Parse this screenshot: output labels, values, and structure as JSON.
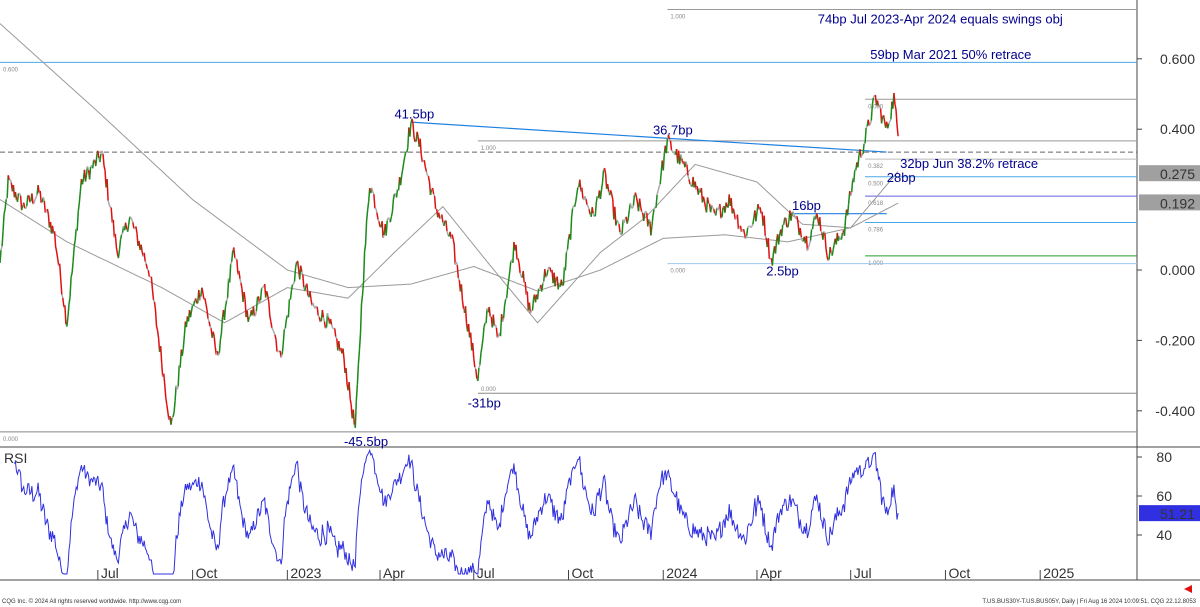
{
  "chart_data": {
    "type": "line",
    "symbol_caption": "T.US.BUS30Y-T.US.BUS05Y, Daily | Fri Aug 16 2024 10:09:51, CQG 22.12.8053",
    "copyright": "CQG Inc. © 2024 All rights reserved worldwide. http://www.cqg.com",
    "price_axis": {
      "ticks": [
        "0.600",
        "0.400",
        "0.000",
        "-0.200",
        "-0.400"
      ],
      "tick_values": [
        0.6,
        0.4,
        0.0,
        -0.2,
        -0.4
      ],
      "ylim": [
        -0.48,
        0.77
      ]
    },
    "price_markers": [
      {
        "label": "0.275",
        "value": 0.275,
        "color": "#a0a0a0"
      },
      {
        "label": "0.192",
        "value": 0.192,
        "color": "#a0a0a0"
      }
    ],
    "x_ticks": [
      {
        "label": "Jul",
        "date": "2022-07-01"
      },
      {
        "label": "Oct",
        "date": "2022-10-01"
      },
      {
        "label": "2023",
        "date": "2023-01-01"
      },
      {
        "label": "Apr",
        "date": "2023-04-01"
      },
      {
        "label": "Jul",
        "date": "2023-07-01"
      },
      {
        "label": "Oct",
        "date": "2023-10-01"
      },
      {
        "label": "2024",
        "date": "2024-01-01"
      },
      {
        "label": "Apr",
        "date": "2024-04-01"
      },
      {
        "label": "Jul",
        "date": "2024-07-01"
      },
      {
        "label": "Oct",
        "date": "2024-10-01"
      },
      {
        "label": "2025",
        "date": "2025-01-01"
      }
    ],
    "x_range": [
      "2022-03-28",
      "2025-04-05"
    ],
    "series": [
      {
        "key": "price",
        "points": [
          [
            "2022-03-28",
            0.02
          ],
          [
            "2022-04-05",
            0.25
          ],
          [
            "2022-04-20",
            0.18
          ],
          [
            "2022-05-05",
            0.22
          ],
          [
            "2022-05-20",
            0.1
          ],
          [
            "2022-06-01",
            -0.15
          ],
          [
            "2022-06-15",
            0.25
          ],
          [
            "2022-07-05",
            0.33
          ],
          [
            "2022-07-20",
            0.05
          ],
          [
            "2022-08-01",
            0.15
          ],
          [
            "2022-08-20",
            0.0
          ],
          [
            "2022-09-10",
            -0.45
          ],
          [
            "2022-09-25",
            -0.15
          ],
          [
            "2022-10-10",
            -0.05
          ],
          [
            "2022-10-25",
            -0.25
          ],
          [
            "2022-11-10",
            0.05
          ],
          [
            "2022-11-25",
            -0.15
          ],
          [
            "2022-12-10",
            -0.05
          ],
          [
            "2022-12-25",
            -0.25
          ],
          [
            "2023-01-10",
            0.02
          ],
          [
            "2023-01-25",
            -0.1
          ],
          [
            "2023-02-10",
            -0.15
          ],
          [
            "2023-02-25",
            -0.25
          ],
          [
            "2023-03-08",
            -0.455
          ],
          [
            "2023-03-15",
            -0.05
          ],
          [
            "2023-03-22",
            0.25
          ],
          [
            "2023-04-05",
            0.1
          ],
          [
            "2023-04-20",
            0.25
          ],
          [
            "2023-05-01",
            0.415
          ],
          [
            "2023-05-10",
            0.35
          ],
          [
            "2023-05-25",
            0.18
          ],
          [
            "2023-06-10",
            0.08
          ],
          [
            "2023-06-25",
            -0.15
          ],
          [
            "2023-07-05",
            -0.31
          ],
          [
            "2023-07-15",
            -0.1
          ],
          [
            "2023-07-25",
            -0.2
          ],
          [
            "2023-08-10",
            0.08
          ],
          [
            "2023-08-25",
            -0.12
          ],
          [
            "2023-09-10",
            0.0
          ],
          [
            "2023-09-25",
            -0.05
          ],
          [
            "2023-10-10",
            0.25
          ],
          [
            "2023-10-25",
            0.15
          ],
          [
            "2023-11-05",
            0.27
          ],
          [
            "2023-11-20",
            0.1
          ],
          [
            "2023-12-05",
            0.2
          ],
          [
            "2023-12-20",
            0.12
          ],
          [
            "2024-01-05",
            0.367
          ],
          [
            "2024-01-20",
            0.3
          ],
          [
            "2024-02-05",
            0.22
          ],
          [
            "2024-02-20",
            0.15
          ],
          [
            "2024-03-05",
            0.2
          ],
          [
            "2024-03-20",
            0.1
          ],
          [
            "2024-04-05",
            0.18
          ],
          [
            "2024-04-15",
            0.025
          ],
          [
            "2024-04-25",
            0.12
          ],
          [
            "2024-05-05",
            0.16
          ],
          [
            "2024-05-20",
            0.08
          ],
          [
            "2024-05-30",
            0.16
          ],
          [
            "2024-06-10",
            0.04
          ],
          [
            "2024-06-25",
            0.12
          ],
          [
            "2024-07-05",
            0.28
          ],
          [
            "2024-07-15",
            0.37
          ],
          [
            "2024-07-25",
            0.49
          ],
          [
            "2024-08-05",
            0.4
          ],
          [
            "2024-08-12",
            0.49
          ],
          [
            "2024-08-16",
            0.38
          ]
        ]
      },
      {
        "key": "ma_long",
        "points": [
          [
            "2022-03-28",
            0.7
          ],
          [
            "2022-07-01",
            0.45
          ],
          [
            "2022-10-01",
            0.2
          ],
          [
            "2023-01-01",
            0.0
          ],
          [
            "2023-03-01",
            -0.05
          ],
          [
            "2023-05-01",
            -0.04
          ],
          [
            "2023-07-01",
            0.01
          ],
          [
            "2023-09-01",
            -0.06
          ],
          [
            "2023-11-01",
            0.0
          ],
          [
            "2024-01-01",
            0.09
          ],
          [
            "2024-03-01",
            0.1
          ],
          [
            "2024-05-01",
            0.08
          ],
          [
            "2024-07-01",
            0.12
          ],
          [
            "2024-08-16",
            0.19
          ]
        ]
      },
      {
        "key": "ma_short",
        "points": [
          [
            "2022-03-28",
            0.2
          ],
          [
            "2022-06-01",
            0.08
          ],
          [
            "2022-09-01",
            -0.05
          ],
          [
            "2022-11-01",
            -0.15
          ],
          [
            "2023-01-01",
            -0.05
          ],
          [
            "2023-03-01",
            -0.08
          ],
          [
            "2023-04-15",
            0.05
          ],
          [
            "2023-06-01",
            0.18
          ],
          [
            "2023-07-15",
            0.02
          ],
          [
            "2023-09-01",
            -0.15
          ],
          [
            "2023-11-01",
            0.05
          ],
          [
            "2023-12-15",
            0.15
          ],
          [
            "2024-02-01",
            0.3
          ],
          [
            "2024-04-01",
            0.25
          ],
          [
            "2024-05-15",
            0.13
          ],
          [
            "2024-07-01",
            0.12
          ],
          [
            "2024-08-16",
            0.28
          ]
        ]
      }
    ],
    "levels": [
      {
        "label": "1.000",
        "value": 0.74,
        "from": "2024-01-05",
        "color": "#999"
      },
      {
        "label": "0.600",
        "value": 0.59,
        "from": "2022-03-28",
        "color": "#4aa8e8"
      },
      {
        "label": "0.000",
        "value": 0.485,
        "from": "2024-07-15",
        "color": "#999"
      },
      {
        "label": "1.000",
        "value": 0.367,
        "from": "2023-07-05",
        "color": "#999"
      },
      {
        "label": "",
        "value": 0.335,
        "from": "2022-03-28",
        "color": "#666",
        "dashed": true
      },
      {
        "label": "0.382",
        "value": 0.315,
        "from": "2024-07-15",
        "color": "#bbb"
      },
      {
        "label": "0.500",
        "value": 0.265,
        "from": "2024-07-15",
        "color": "#4aa8e8"
      },
      {
        "label": "0.618",
        "value": 0.21,
        "from": "2024-07-15",
        "color": "#6060e0"
      },
      {
        "label": "0.786",
        "value": 0.135,
        "from": "2024-07-15",
        "color": "#4aa8e8"
      },
      {
        "label": "1.000",
        "value": 0.04,
        "from": "2024-07-15",
        "color": "#2a9a2a"
      },
      {
        "label": "0.000",
        "value": 0.018,
        "from": "2024-01-05",
        "color": "#9cc8f0"
      },
      {
        "label": "0.000",
        "value": -0.35,
        "from": "2023-07-05",
        "color": "#888"
      },
      {
        "label": "0.000",
        "value": -0.46,
        "from": "2022-03-28",
        "color": "#888"
      }
    ],
    "trendlines": [
      {
        "from": [
          "2023-05-01",
          0.42
        ],
        "to": [
          "2024-08-05",
          0.335
        ],
        "color": "#2080e0"
      },
      {
        "from": [
          "2024-05-05",
          0.16
        ],
        "to": [
          "2024-08-05",
          0.16
        ],
        "color": "#2080e0"
      }
    ],
    "annotations": [
      {
        "text": "74bp Jul 2023-Apr 2024 equals swings obj",
        "date": "2024-05-30",
        "value": 0.7
      },
      {
        "text": "59bp Mar 2021 50% retrace",
        "date": "2024-07-20",
        "value": 0.6
      },
      {
        "text": "41.5bp",
        "date": "2023-04-15",
        "value": 0.43
      },
      {
        "text": "36.7bp",
        "date": "2023-12-22",
        "value": 0.385
      },
      {
        "text": "32bp Jun 38.2% retrace",
        "date": "2024-08-18",
        "value": 0.29
      },
      {
        "text": "28bp",
        "date": "2024-08-05",
        "value": 0.25
      },
      {
        "text": "16bp",
        "date": "2024-05-05",
        "value": 0.17
      },
      {
        "text": "2.5bp",
        "date": "2024-04-10",
        "value": -0.015
      },
      {
        "text": "-31bp",
        "date": "2023-06-25",
        "value": -0.39
      },
      {
        "text": "-45.5bp",
        "date": "2023-02-25",
        "value": -0.5
      }
    ],
    "rsi": {
      "title": "RSI",
      "ticks": [
        "80",
        "60",
        "40"
      ],
      "tick_values": [
        80,
        60,
        40
      ],
      "ylim": [
        20,
        85
      ],
      "last": 51.21,
      "last_label": "51.21",
      "color": "#3030e0"
    }
  }
}
